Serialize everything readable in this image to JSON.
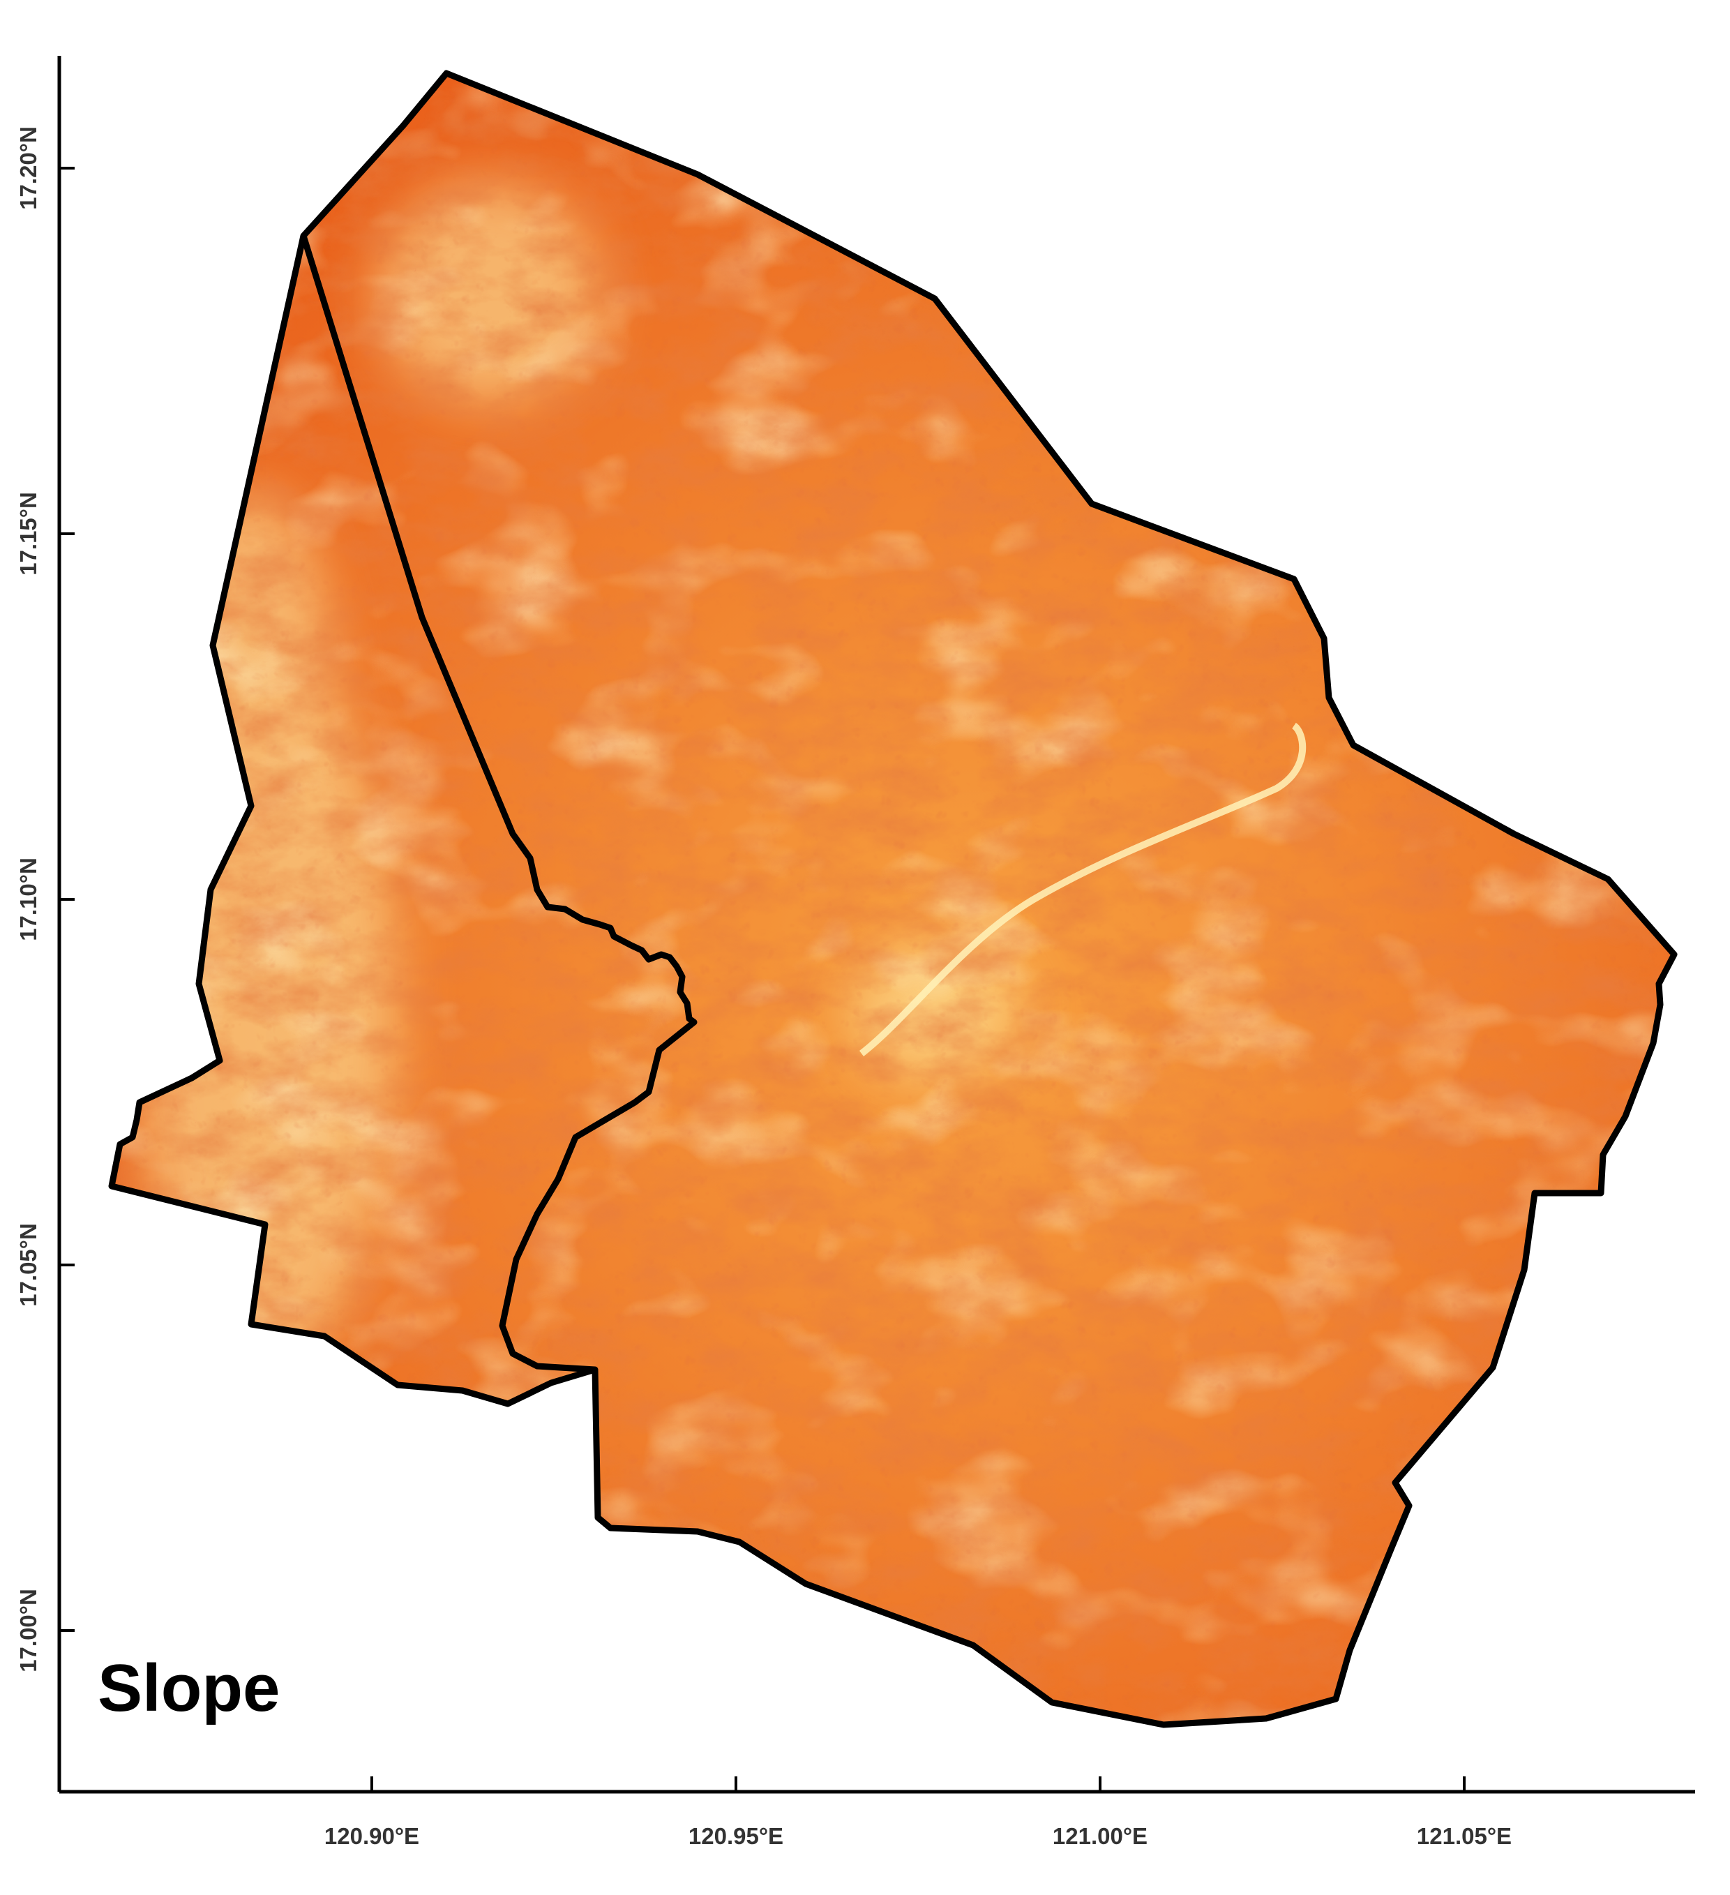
{
  "map": {
    "title": "Slope",
    "x_axis": {
      "ticks": [
        {
          "value": 120.9,
          "label": "120.90°E"
        },
        {
          "value": 120.95,
          "label": "120.95°E"
        },
        {
          "value": 121.0,
          "label": "121.00°E"
        },
        {
          "value": 121.05,
          "label": "121.05°E"
        }
      ]
    },
    "y_axis": {
      "ticks": [
        {
          "value": 17.0,
          "label": "17.00°N"
        },
        {
          "value": 17.05,
          "label": "17.05°N"
        },
        {
          "value": 17.1,
          "label": "17.10°N"
        },
        {
          "value": 17.15,
          "label": "17.15°N"
        },
        {
          "value": 17.2,
          "label": "17.20°N"
        }
      ]
    },
    "colors": {
      "low_slope": "#fff0a8",
      "mid_slope": "#f7a040",
      "high_slope": "#e85a18",
      "steep": "#c62810",
      "boundary": "#000000"
    }
  }
}
